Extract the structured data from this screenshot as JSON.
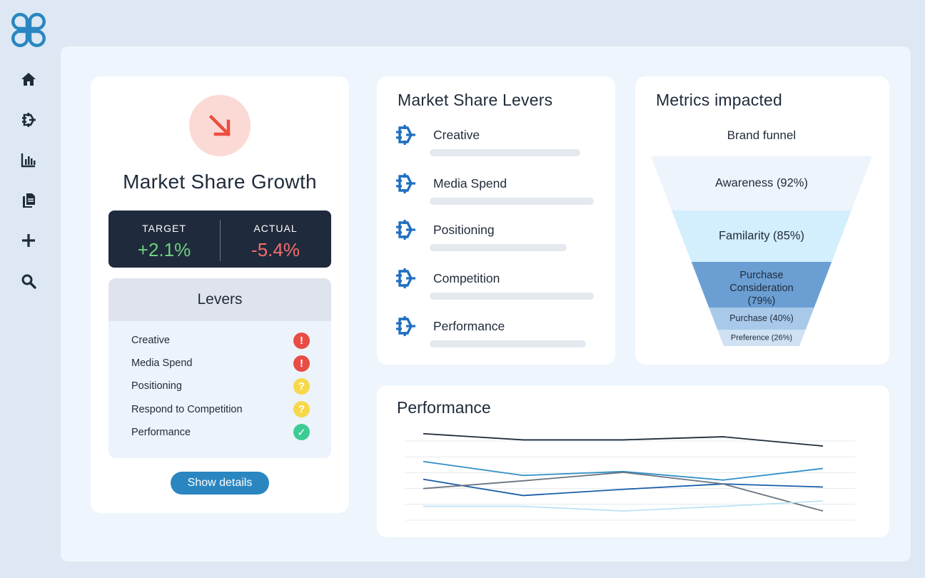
{
  "sidebar": {
    "logo": "clover-logo",
    "items": [
      {
        "icon": "home-icon"
      },
      {
        "icon": "target-icon"
      },
      {
        "icon": "bar-chart-icon"
      },
      {
        "icon": "documents-icon"
      },
      {
        "icon": "plus-icon"
      },
      {
        "icon": "search-icon"
      }
    ]
  },
  "growth": {
    "trend_icon": "arrow-down-right-icon",
    "title": "Market Share Growth",
    "target_label": "TARGET",
    "target_value": "+2.1%",
    "actual_label": "ACTUAL",
    "actual_value": "-5.4%",
    "levers_title": "Levers",
    "levers": [
      {
        "label": "Creative",
        "status": "alert"
      },
      {
        "label": "Media Spend",
        "status": "alert"
      },
      {
        "label": "Positioning",
        "status": "warn"
      },
      {
        "label": "Respond to Competition",
        "status": "warn"
      },
      {
        "label": "Performance",
        "status": "ok"
      }
    ],
    "show_details": "Show details",
    "colors": {
      "target": "#6fcf7f",
      "actual": "#f36d6a",
      "accent": "#2a86c0"
    }
  },
  "market_levers": {
    "title": "Market Share Levers",
    "items": [
      {
        "label": "Creative",
        "progress": 0.78
      },
      {
        "label": "Media Spend",
        "progress": 0.85
      },
      {
        "label": "Positioning",
        "progress": 0.71
      },
      {
        "label": "Competition",
        "progress": 0.85
      },
      {
        "label": "Performance",
        "progress": 0.81
      }
    ]
  },
  "metrics": {
    "title": "Metrics impacted",
    "funnel_title": "Brand funnel",
    "funnel": [
      {
        "label": "Awareness (92%)",
        "value": 92,
        "color": "#eef4fb"
      },
      {
        "label": "Familarity (85%)",
        "value": 85,
        "color": "#d3eefc"
      },
      {
        "label": "Purchase Consideration (79%)",
        "lines": [
          "Purchase",
          "Consideration",
          "(79%)"
        ],
        "value": 79,
        "color": "#6b9fd3"
      },
      {
        "label": "Purchase (40%)",
        "value": 40,
        "color": "#a9c9ea"
      },
      {
        "label": "Preference (26%)",
        "value": 26,
        "color": "#cfe1f3"
      }
    ]
  },
  "performance": {
    "title": "Performance"
  },
  "chart_data": {
    "type": "line",
    "title": "Performance",
    "x": [
      0,
      1,
      2,
      3,
      4
    ],
    "ylim": [
      0,
      6
    ],
    "grid": true,
    "series": [
      {
        "values": [
          5.55,
          5.15,
          5.15,
          5.35,
          4.75
        ],
        "color": "#1f2b3a"
      },
      {
        "values": [
          3.75,
          2.85,
          3.1,
          2.55,
          3.3
        ],
        "color": "#2f8fc8"
      },
      {
        "values": [
          2.6,
          1.55,
          1.95,
          2.3,
          2.1
        ],
        "color": "#1a5ea8"
      },
      {
        "values": [
          2.0,
          2.5,
          3.05,
          2.3,
          0.55
        ],
        "color": "#6b7480"
      },
      {
        "values": [
          0.85,
          0.85,
          0.55,
          0.85,
          1.2
        ],
        "color": "#bfe3f5"
      }
    ]
  }
}
